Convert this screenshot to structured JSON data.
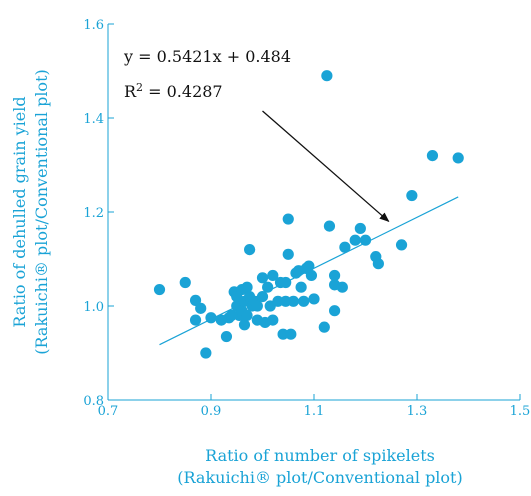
{
  "colors": {
    "accent": "#1aa3d6",
    "text": "#111111"
  },
  "chart_data": {
    "type": "scatter",
    "title": "",
    "xlabel_line1": "Ratio of number of spikelets",
    "xlabel_line2": "(Rakuichi® plot/Conventional  plot)",
    "ylabel_line1": "Ratio of dehulled  grain yield",
    "ylabel_line2": "(Rakuichi® plot/Conventional plot)",
    "xlim": [
      0.7,
      1.5
    ],
    "ylim": [
      0.8,
      1.6
    ],
    "xticks": [
      0.7,
      0.9,
      1.1,
      1.3,
      1.5
    ],
    "yticks": [
      0.8,
      1.0,
      1.2,
      1.4,
      1.6
    ],
    "xtick_labels": [
      "0.7",
      "0.9",
      "1.1",
      "1.3",
      "1.5"
    ],
    "ytick_labels": [
      "0.8",
      "1.0",
      "1.2",
      "1.4",
      "1.6"
    ],
    "equation": "y = 0.5421x + 0.484",
    "r2_label": "R",
    "r2_exp": "2",
    "r2_value": " = 0.4287",
    "trendline": {
      "slope": 0.5421,
      "intercept": 0.484,
      "x_range": [
        0.8,
        1.38
      ]
    },
    "arrow": {
      "from": [
        1.0,
        1.415
      ],
      "to": [
        1.245,
        1.18
      ]
    },
    "points": [
      [
        0.8,
        1.035
      ],
      [
        0.85,
        1.05
      ],
      [
        0.87,
        1.012
      ],
      [
        0.87,
        0.97
      ],
      [
        0.88,
        0.995
      ],
      [
        0.89,
        0.9
      ],
      [
        0.9,
        0.975
      ],
      [
        0.92,
        0.97
      ],
      [
        0.93,
        0.935
      ],
      [
        0.935,
        0.975
      ],
      [
        0.94,
        0.98
      ],
      [
        0.945,
        1.03
      ],
      [
        0.95,
        1.0
      ],
      [
        0.95,
        1.02
      ],
      [
        0.955,
        0.98
      ],
      [
        0.96,
        1.035
      ],
      [
        0.96,
        0.99
      ],
      [
        0.965,
        1.01
      ],
      [
        0.965,
        0.96
      ],
      [
        0.97,
        1.04
      ],
      [
        0.97,
        0.98
      ],
      [
        0.975,
        1.02
      ],
      [
        0.975,
        1.12
      ],
      [
        0.98,
        1.0
      ],
      [
        0.985,
        1.01
      ],
      [
        0.99,
        1.0
      ],
      [
        0.99,
        0.97
      ],
      [
        1.0,
        1.06
      ],
      [
        1.0,
        1.02
      ],
      [
        1.005,
        0.965
      ],
      [
        1.01,
        1.04
      ],
      [
        1.015,
        1.0
      ],
      [
        1.02,
        1.065
      ],
      [
        1.02,
        0.97
      ],
      [
        1.03,
        1.01
      ],
      [
        1.035,
        1.05
      ],
      [
        1.04,
        0.94
      ],
      [
        1.045,
        1.01
      ],
      [
        1.045,
        1.05
      ],
      [
        1.05,
        1.11
      ],
      [
        1.05,
        1.185
      ],
      [
        1.055,
        0.94
      ],
      [
        1.06,
        1.01
      ],
      [
        1.065,
        1.07
      ],
      [
        1.07,
        1.075
      ],
      [
        1.075,
        1.04
      ],
      [
        1.08,
        1.01
      ],
      [
        1.085,
        1.08
      ],
      [
        1.09,
        1.085
      ],
      [
        1.095,
        1.065
      ],
      [
        1.1,
        1.015
      ],
      [
        1.12,
        0.955
      ],
      [
        1.125,
        1.49
      ],
      [
        1.13,
        1.17
      ],
      [
        1.14,
        1.065
      ],
      [
        1.14,
        1.045
      ],
      [
        1.14,
        0.99
      ],
      [
        1.155,
        1.04
      ],
      [
        1.16,
        1.125
      ],
      [
        1.18,
        1.14
      ],
      [
        1.19,
        1.165
      ],
      [
        1.2,
        1.14
      ],
      [
        1.22,
        1.105
      ],
      [
        1.225,
        1.09
      ],
      [
        1.27,
        1.13
      ],
      [
        1.29,
        1.235
      ],
      [
        1.33,
        1.32
      ],
      [
        1.38,
        1.315
      ]
    ]
  }
}
